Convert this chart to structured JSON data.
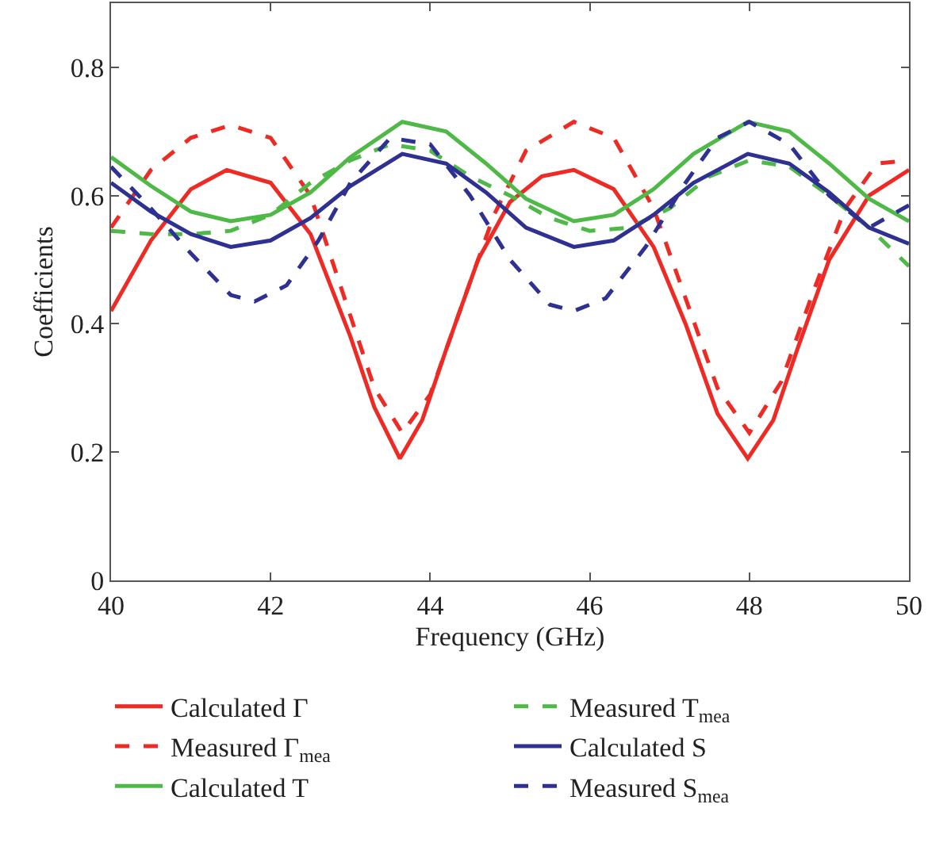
{
  "chart_data": {
    "type": "line",
    "xlabel": "Frequency (GHz)",
    "ylabel": "Coefficients",
    "xlim": [
      40,
      50
    ],
    "xticks": [
      40,
      42,
      44,
      46,
      48,
      50
    ],
    "ylim": [
      0,
      0.9
    ],
    "yticks": [
      0,
      0.2,
      0.4,
      0.6,
      0.8
    ],
    "grid": false,
    "legend": "bottom",
    "marker": "none",
    "series": [
      {
        "name": "Calculated Γ",
        "color": "#ee2a24",
        "line_style": "solid",
        "x": [
          40,
          40.5,
          41,
          41.45,
          42,
          42.5,
          43,
          43.3,
          43.62,
          43.9,
          44.2,
          44.6,
          45,
          45.4,
          45.8,
          46.3,
          46.8,
          47.2,
          47.6,
          47.98,
          48.3,
          48.6,
          49,
          49.5,
          50
        ],
        "values": [
          0.42,
          0.53,
          0.61,
          0.64,
          0.62,
          0.54,
          0.38,
          0.27,
          0.19,
          0.25,
          0.36,
          0.5,
          0.59,
          0.63,
          0.64,
          0.61,
          0.52,
          0.4,
          0.26,
          0.19,
          0.25,
          0.36,
          0.5,
          0.6,
          0.64
        ]
      },
      {
        "name": "Measured Γ$_{mea}$",
        "color": "#ee2a24",
        "line_style": "dashed",
        "x": [
          40,
          40.5,
          41,
          41.5,
          42,
          42.5,
          42.9,
          43.3,
          43.65,
          44,
          44.4,
          44.8,
          45.2,
          45.8,
          46.3,
          46.8,
          47.2,
          47.6,
          48,
          48.4,
          48.8,
          49.2,
          49.6,
          50
        ],
        "values": [
          0.55,
          0.64,
          0.69,
          0.71,
          0.69,
          0.6,
          0.45,
          0.3,
          0.23,
          0.29,
          0.43,
          0.57,
          0.67,
          0.715,
          0.69,
          0.58,
          0.44,
          0.3,
          0.23,
          0.31,
          0.45,
          0.58,
          0.65,
          0.655
        ]
      },
      {
        "name": "Calculated T",
        "color": "#4fb948",
        "line_style": "solid",
        "x": [
          40,
          40.5,
          41,
          41.5,
          42,
          42.5,
          43,
          43.65,
          44.2,
          44.7,
          45.2,
          45.8,
          46.3,
          46.8,
          47.3,
          47.98,
          48.5,
          49,
          49.5,
          50
        ],
        "values": [
          0.66,
          0.615,
          0.575,
          0.56,
          0.57,
          0.605,
          0.66,
          0.715,
          0.7,
          0.65,
          0.595,
          0.56,
          0.57,
          0.61,
          0.665,
          0.715,
          0.7,
          0.65,
          0.595,
          0.56
        ]
      },
      {
        "name": "Measured T$_{mea}$",
        "color": "#4fb948",
        "line_style": "dashed",
        "x": [
          40,
          40.5,
          41,
          41.5,
          42,
          42.5,
          43,
          43.5,
          44,
          44.5,
          45,
          45.5,
          46,
          46.5,
          47,
          47.5,
          48,
          48.5,
          49,
          49.5,
          50
        ],
        "values": [
          0.545,
          0.54,
          0.54,
          0.545,
          0.57,
          0.62,
          0.655,
          0.68,
          0.67,
          0.63,
          0.6,
          0.565,
          0.545,
          0.55,
          0.58,
          0.63,
          0.655,
          0.645,
          0.6,
          0.55,
          0.49
        ]
      },
      {
        "name": "Calculated S",
        "color": "#2e3192",
        "line_style": "solid",
        "x": [
          40,
          40.5,
          41,
          41.5,
          42,
          42.5,
          43,
          43.65,
          44.2,
          44.7,
          45.2,
          45.8,
          46.3,
          46.8,
          47.3,
          47.98,
          48.5,
          49,
          49.5,
          50
        ],
        "values": [
          0.62,
          0.575,
          0.54,
          0.52,
          0.53,
          0.565,
          0.615,
          0.665,
          0.65,
          0.605,
          0.55,
          0.52,
          0.53,
          0.57,
          0.62,
          0.665,
          0.65,
          0.605,
          0.55,
          0.525
        ]
      },
      {
        "name": "Measured S$_{mea}$",
        "color": "#2e3192",
        "line_style": "dashed",
        "x": [
          40,
          40.5,
          41,
          41.5,
          41.8,
          42.2,
          42.6,
          43,
          43.5,
          44,
          44.5,
          45,
          45.5,
          45.8,
          46.2,
          46.7,
          47.2,
          47.6,
          48,
          48.5,
          49,
          49.5,
          50
        ],
        "values": [
          0.645,
          0.58,
          0.51,
          0.445,
          0.435,
          0.46,
          0.53,
          0.62,
          0.69,
          0.68,
          0.6,
          0.5,
          0.43,
          0.42,
          0.44,
          0.52,
          0.62,
          0.69,
          0.715,
          0.68,
          0.6,
          0.55,
          0.585
        ]
      }
    ]
  }
}
